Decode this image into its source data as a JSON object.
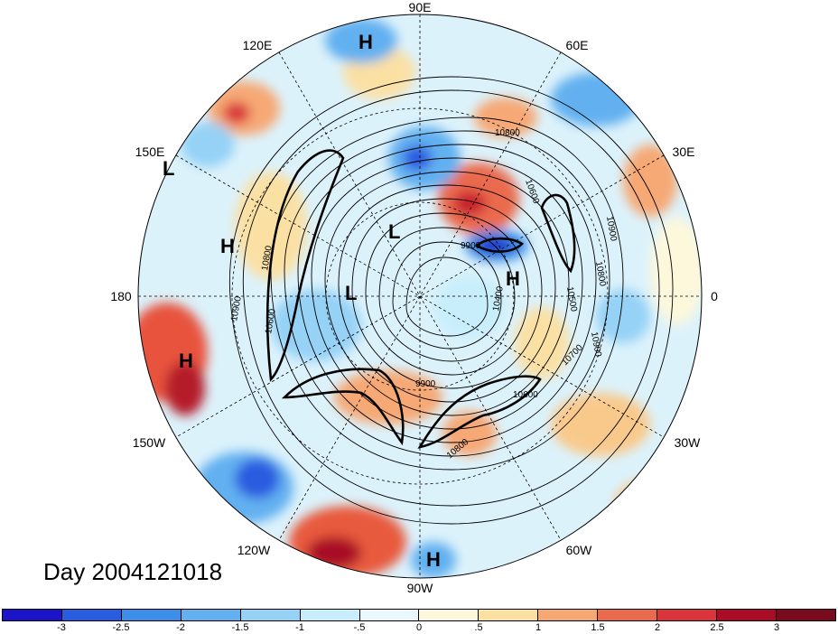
{
  "longitude_labels": [
    "90E",
    "60E",
    "30E",
    "0",
    "30W",
    "60W",
    "90W",
    "120W",
    "150W",
    "180",
    "150E",
    "120E"
  ],
  "day_label": "Day 2004121018",
  "pressure_systems": [
    {
      "type": "H",
      "where": "north, near 90E"
    },
    {
      "type": "L",
      "where": "near 150E"
    },
    {
      "type": "H",
      "where": "north Pacific near 160E"
    },
    {
      "type": "L",
      "where": "east Asia"
    },
    {
      "type": "L",
      "where": "near dateline high latitudes"
    },
    {
      "type": "H",
      "where": "Europe"
    },
    {
      "type": "H",
      "where": "north Pacific near 180"
    },
    {
      "type": "H",
      "where": "near 90W low latitudes"
    }
  ],
  "contour_labels": [
    "10800",
    "10600",
    "10900",
    "9900",
    "10800",
    "10500",
    "10400",
    "10900",
    "10700",
    "9900",
    "10600",
    "10800",
    "10900",
    "10600",
    "10800"
  ],
  "colorbar": {
    "tick_labels": [
      "-3",
      "-2.5",
      "-2",
      "-1.5",
      "-1",
      "-.5",
      "0",
      ".5",
      "1",
      "1.5",
      "2",
      "2.5",
      "3"
    ],
    "colors": [
      "#1b14c8",
      "#2a5ce0",
      "#3d8ee8",
      "#62b0f0",
      "#95d2f6",
      "#c8eefc",
      "#eaf8fd",
      "#fdf8dc",
      "#fbe0a4",
      "#f6a874",
      "#ea6a4e",
      "#d9353a",
      "#a90d26",
      "#7a0a1e"
    ]
  }
}
